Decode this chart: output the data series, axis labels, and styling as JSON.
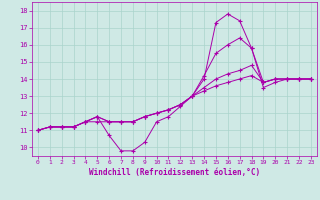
{
  "background_color": "#cfe9e5",
  "grid_color": "#aad4cc",
  "line_color": "#aa00aa",
  "xlabel": "Windchill (Refroidissement éolien,°C)",
  "xlim": [
    -0.5,
    23.5
  ],
  "ylim": [
    9.5,
    18.5
  ],
  "yticks": [
    10,
    11,
    12,
    13,
    14,
    15,
    16,
    17,
    18
  ],
  "xticks": [
    0,
    1,
    2,
    3,
    4,
    5,
    6,
    7,
    8,
    9,
    10,
    11,
    12,
    13,
    14,
    15,
    16,
    17,
    18,
    19,
    20,
    21,
    22,
    23
  ],
  "series": [
    [
      11.0,
      11.2,
      11.2,
      11.2,
      11.5,
      11.8,
      10.7,
      9.8,
      9.8,
      10.3,
      11.5,
      11.8,
      12.4,
      13.0,
      14.0,
      17.3,
      17.8,
      17.4,
      15.8,
      13.5,
      13.8,
      14.0,
      14.0,
      14.0
    ],
    [
      11.0,
      11.2,
      11.2,
      11.2,
      11.5,
      11.8,
      11.5,
      11.5,
      11.5,
      11.8,
      12.0,
      12.2,
      12.5,
      13.0,
      14.2,
      15.5,
      16.0,
      16.4,
      15.8,
      13.8,
      14.0,
      14.0,
      14.0,
      14.0
    ],
    [
      11.0,
      11.2,
      11.2,
      11.2,
      11.5,
      11.8,
      11.5,
      11.5,
      11.5,
      11.8,
      12.0,
      12.2,
      12.5,
      13.0,
      13.5,
      14.0,
      14.3,
      14.5,
      14.8,
      13.8,
      14.0,
      14.0,
      14.0,
      14.0
    ],
    [
      11.0,
      11.2,
      11.2,
      11.2,
      11.5,
      11.5,
      11.5,
      11.5,
      11.5,
      11.8,
      12.0,
      12.2,
      12.5,
      13.0,
      13.3,
      13.6,
      13.8,
      14.0,
      14.2,
      13.8,
      14.0,
      14.0,
      14.0,
      14.0
    ]
  ]
}
